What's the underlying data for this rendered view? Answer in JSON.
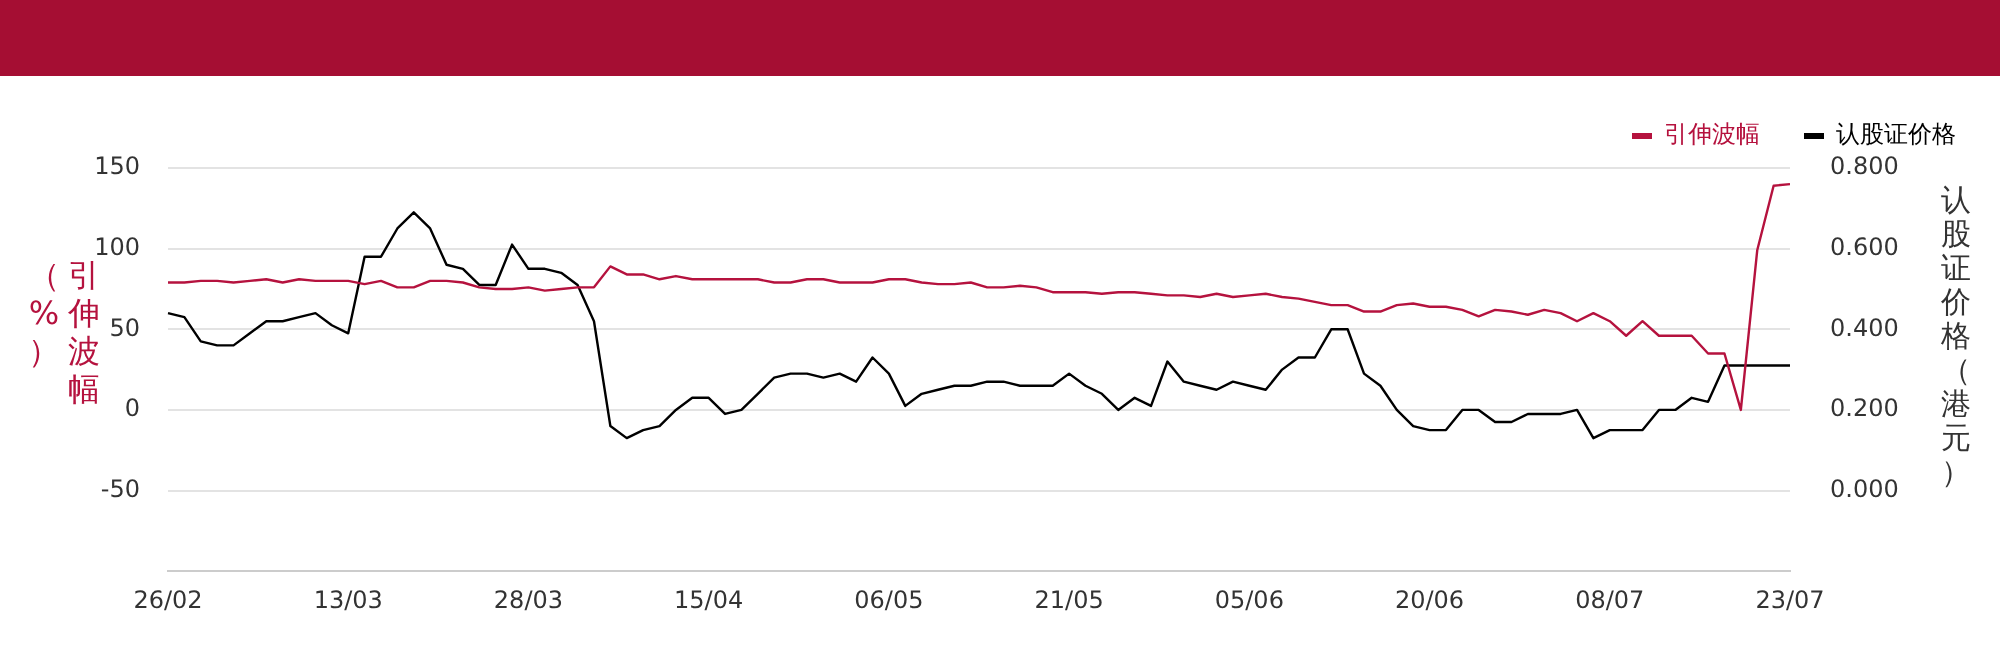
{
  "chart_data": {
    "type": "line",
    "ylabel": "引伸波幅（%）",
    "y2label": "认股证价格（港元）",
    "categories": [
      "26/02",
      null,
      null,
      null,
      null,
      null,
      null,
      null,
      null,
      null,
      null,
      "13/03",
      null,
      null,
      null,
      null,
      null,
      null,
      null,
      null,
      null,
      null,
      "28/03",
      null,
      null,
      null,
      null,
      null,
      null,
      null,
      null,
      null,
      null,
      "15/04",
      null,
      null,
      null,
      null,
      null,
      null,
      null,
      null,
      null,
      null,
      "06/05",
      null,
      null,
      null,
      null,
      null,
      null,
      null,
      null,
      null,
      null,
      "21/05",
      null,
      null,
      null,
      null,
      null,
      null,
      null,
      null,
      null,
      null,
      "05/06",
      null,
      null,
      null,
      null,
      null,
      null,
      null,
      null,
      null,
      null,
      "20/06",
      null,
      null,
      null,
      null,
      null,
      null,
      null,
      null,
      null,
      null,
      "08/07",
      null,
      null,
      null,
      null,
      null,
      null,
      null,
      null,
      null,
      null,
      "23/07"
    ],
    "series": [
      {
        "name": "引伸波幅",
        "color": "#b5123e",
        "values": [
          79,
          79,
          80,
          80,
          79,
          80,
          81,
          79,
          81,
          80,
          80,
          80,
          78,
          80,
          76,
          76,
          80,
          80,
          79,
          76,
          75,
          75,
          76,
          74,
          75,
          76,
          76,
          89,
          84,
          84,
          81,
          83,
          81,
          81,
          81,
          81,
          81,
          79,
          79,
          81,
          81,
          79,
          79,
          79,
          81,
          81,
          79,
          78,
          78,
          79,
          76,
          76,
          77,
          76,
          73,
          73,
          73,
          72,
          73,
          73,
          72,
          71,
          71,
          70,
          72,
          70,
          71,
          72,
          70,
          69,
          67,
          65,
          65,
          61,
          61,
          65,
          66,
          64,
          64,
          62,
          58,
          62,
          61,
          59,
          62,
          60,
          55,
          60,
          55,
          46,
          55,
          46,
          46,
          46,
          35,
          35,
          0,
          99,
          139,
          140
        ]
      },
      {
        "name": "认股证价格",
        "color": "#000000",
        "axis": "y2",
        "values": [
          0.44,
          0.43,
          0.37,
          0.36,
          0.36,
          0.39,
          0.42,
          0.42,
          0.43,
          0.44,
          0.41,
          0.39,
          0.58,
          0.58,
          0.65,
          0.69,
          0.65,
          0.56,
          0.55,
          0.51,
          0.51,
          0.61,
          0.55,
          0.55,
          0.54,
          0.51,
          0.42,
          0.16,
          0.13,
          0.15,
          0.16,
          0.2,
          0.23,
          0.23,
          0.19,
          0.2,
          0.24,
          0.28,
          0.29,
          0.29,
          0.28,
          0.29,
          0.27,
          0.33,
          0.29,
          0.21,
          0.24,
          0.25,
          0.26,
          0.26,
          0.27,
          0.27,
          0.26,
          0.26,
          0.26,
          0.29,
          0.26,
          0.24,
          0.2,
          0.23,
          0.21,
          0.32,
          0.27,
          0.26,
          0.25,
          0.27,
          0.26,
          0.25,
          0.3,
          0.33,
          0.33,
          0.4,
          0.4,
          0.29,
          0.26,
          0.2,
          0.16,
          0.15,
          0.15,
          0.2,
          0.2,
          0.17,
          0.17,
          0.19,
          0.19,
          0.19,
          0.2,
          0.13,
          0.15,
          0.15,
          0.15,
          0.2,
          0.2,
          0.23,
          0.22,
          0.31,
          0.31,
          0.31,
          0.31,
          0.31
        ]
      }
    ],
    "ylim": [
      -100,
      150
    ],
    "yticks": [
      -50,
      0,
      50,
      100,
      150
    ],
    "y2lim": [
      -0.2,
      0.8
    ],
    "y2ticks": [
      {
        "value": 0,
        "label": "0.000"
      },
      {
        "value": 0.2,
        "label": "0.200"
      },
      {
        "value": 0.4,
        "label": "0.400"
      },
      {
        "value": 0.6,
        "label": "0.600"
      },
      {
        "value": 0.8,
        "label": "0.800"
      }
    ],
    "grid": "y",
    "legend": "top right",
    "marker": "none",
    "line_style": "solid"
  }
}
